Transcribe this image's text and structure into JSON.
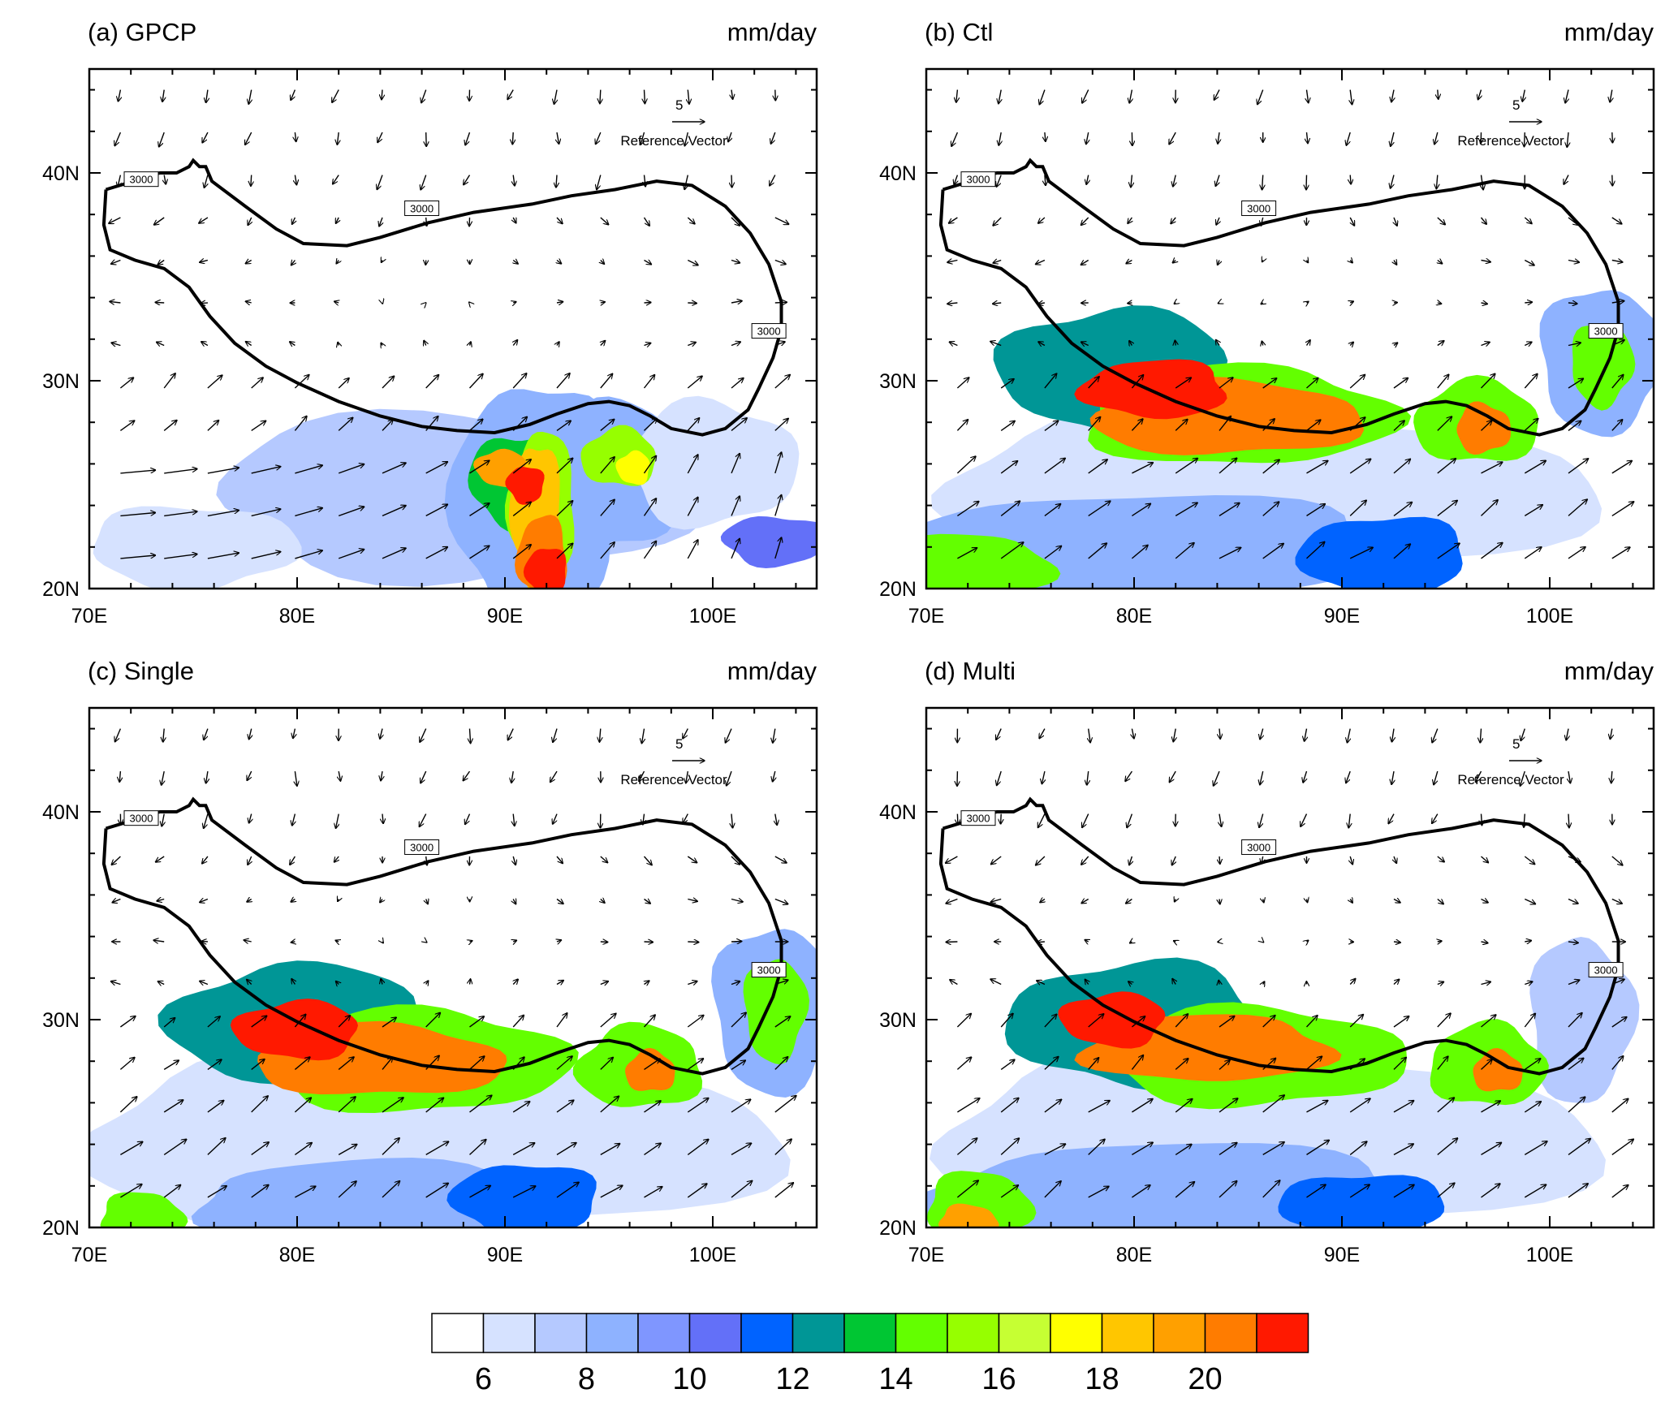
{
  "units": "mm/day",
  "reference_vector": {
    "magnitude": "5",
    "label": "Reference Vector"
  },
  "contour_label": "3000",
  "axes": {
    "x_ticks": [
      "70E",
      "80E",
      "90E",
      "100E"
    ],
    "y_ticks": [
      "20N",
      "30N",
      "40N"
    ],
    "x_range": [
      70,
      105
    ],
    "y_range": [
      20,
      45
    ]
  },
  "panels": [
    {
      "id": "a",
      "title": "(a) GPCP"
    },
    {
      "id": "b",
      "title": "(b) Ctl"
    },
    {
      "id": "c",
      "title": "(c) Single"
    },
    {
      "id": "d",
      "title": "(d) Multi"
    }
  ],
  "colorbar": {
    "labels": [
      "6",
      "8",
      "10",
      "12",
      "14",
      "16",
      "18",
      "20"
    ],
    "colors": [
      "#ffffff",
      "#d6e2ff",
      "#b5c9ff",
      "#8eb2ff",
      "#7f96ff",
      "#6370f8",
      "#0063ff",
      "#009696",
      "#00c633",
      "#63ff00",
      "#96ff00",
      "#c6ff33",
      "#ffff00",
      "#ffc600",
      "#ffa000",
      "#ff7c00",
      "#ff1900"
    ]
  },
  "chart_data": {
    "type": "map",
    "layers": [
      "precipitation shading (mm/day)",
      "wind vectors",
      "3000 m topography contour"
    ],
    "color_levels": [
      6,
      8,
      10,
      12,
      14,
      16,
      18,
      20
    ]
  }
}
